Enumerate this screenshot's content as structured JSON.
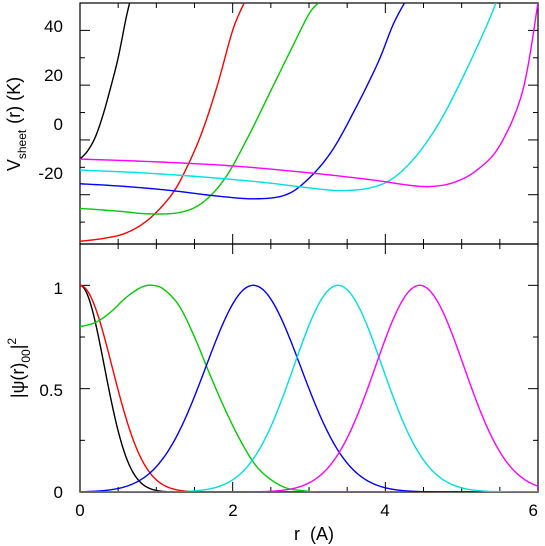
{
  "chart_data": [
    {
      "type": "line",
      "ylabel_main": "V",
      "ylabel_sub": "sheet",
      "ylabel_rest": "(r)  (K)",
      "xlim": [
        0,
        6
      ],
      "ylim": [
        -38,
        50
      ],
      "y_ticks": [
        40,
        20,
        0,
        -20
      ],
      "y_tick_labels": [
        "40",
        "20",
        "0",
        "-20"
      ],
      "x_ticks": [
        0,
        2,
        4,
        6
      ],
      "grid": false,
      "series": [
        {
          "color": "#000000",
          "x": [
            0,
            0.1,
            0.2,
            0.3,
            0.4,
            0.5,
            0.6,
            0.65
          ],
          "y": [
            -7,
            -4,
            1,
            9,
            19,
            30,
            44,
            50
          ]
        },
        {
          "color": "#ff0000",
          "x": [
            0,
            0.3,
            0.6,
            0.9,
            1.2,
            1.4,
            1.6,
            1.8,
            2.0,
            2.15
          ],
          "y": [
            -37,
            -36,
            -34,
            -29,
            -20,
            -10,
            3,
            20,
            40,
            50
          ]
        },
        {
          "color": "#00cc00",
          "x": [
            0,
            0.5,
            0.9,
            1.3,
            1.6,
            1.9,
            2.2,
            2.5,
            2.8,
            3.0,
            3.12
          ],
          "y": [
            -25,
            -26,
            -27,
            -26.5,
            -23,
            -14,
            1,
            18,
            35,
            46,
            50
          ]
        },
        {
          "color": "#0000ff",
          "x": [
            0,
            0.6,
            1.2,
            1.8,
            2.3,
            2.7,
            3.0,
            3.3,
            3.6,
            3.9,
            4.1,
            4.25
          ],
          "y": [
            -16,
            -17,
            -18.5,
            -20.5,
            -21.5,
            -20,
            -14,
            -4,
            11,
            28,
            42,
            50
          ]
        },
        {
          "color": "#00e0e0",
          "x": [
            0,
            0.8,
            1.6,
            2.4,
            3.0,
            3.4,
            3.8,
            4.1,
            4.4,
            4.7,
            5.0,
            5.3,
            5.45
          ],
          "y": [
            -11,
            -12,
            -13.5,
            -15.5,
            -17.5,
            -18.5,
            -17.5,
            -14,
            -6,
            6,
            22,
            40,
            50
          ]
        },
        {
          "color": "#ff00ff",
          "x": [
            0,
            1.0,
            2.0,
            3.0,
            3.8,
            4.3,
            4.6,
            4.9,
            5.2,
            5.5,
            5.8,
            6.0
          ],
          "y": [
            -7,
            -8,
            -9.5,
            -12,
            -14.5,
            -16.5,
            -17,
            -15.5,
            -11,
            -2,
            18,
            50
          ]
        }
      ]
    },
    {
      "type": "line",
      "xlabel": "r  (A)",
      "ylabel_text": "|ψ(r)",
      "ylabel_sub": "00",
      "ylabel_close": "|",
      "ylabel_sup": "2",
      "xlim": [
        0,
        6
      ],
      "ylim": [
        0,
        1.2
      ],
      "x_ticks": [
        0,
        2,
        4,
        6
      ],
      "x_tick_labels": [
        "0",
        "2",
        "4",
        "6"
      ],
      "y_ticks": [
        0,
        0.5,
        1
      ],
      "y_tick_labels": [
        "0",
        "0.5",
        "1"
      ],
      "grid": false,
      "series": [
        {
          "color": "#000000",
          "type": "gauss",
          "center": 0.0,
          "sigma": 0.32,
          "floor": 0.0
        },
        {
          "color": "#ff0000",
          "type": "gauss",
          "center": 0.0,
          "sigma": 0.42,
          "floor": 0.0
        },
        {
          "color": "#00cc00",
          "x": [
            0,
            0.2,
            0.4,
            0.6,
            0.8,
            0.95,
            1.1,
            1.3,
            1.5,
            1.7,
            1.9,
            2.1,
            2.3,
            2.5,
            2.7,
            2.9,
            3.1
          ],
          "y": [
            0.8,
            0.82,
            0.87,
            0.94,
            0.99,
            1.0,
            0.98,
            0.9,
            0.75,
            0.57,
            0.4,
            0.25,
            0.13,
            0.06,
            0.02,
            0.007,
            0.0
          ]
        },
        {
          "color": "#0000ff",
          "type": "gauss",
          "center": 2.27,
          "sigma": 0.62,
          "floor": 0.0
        },
        {
          "color": "#00e0e0",
          "type": "gauss",
          "center": 3.38,
          "sigma": 0.58,
          "floor": 0.0
        },
        {
          "color": "#ff00ff",
          "type": "gauss",
          "center": 4.45,
          "sigma": 0.58,
          "floor": 0.0
        }
      ]
    }
  ]
}
